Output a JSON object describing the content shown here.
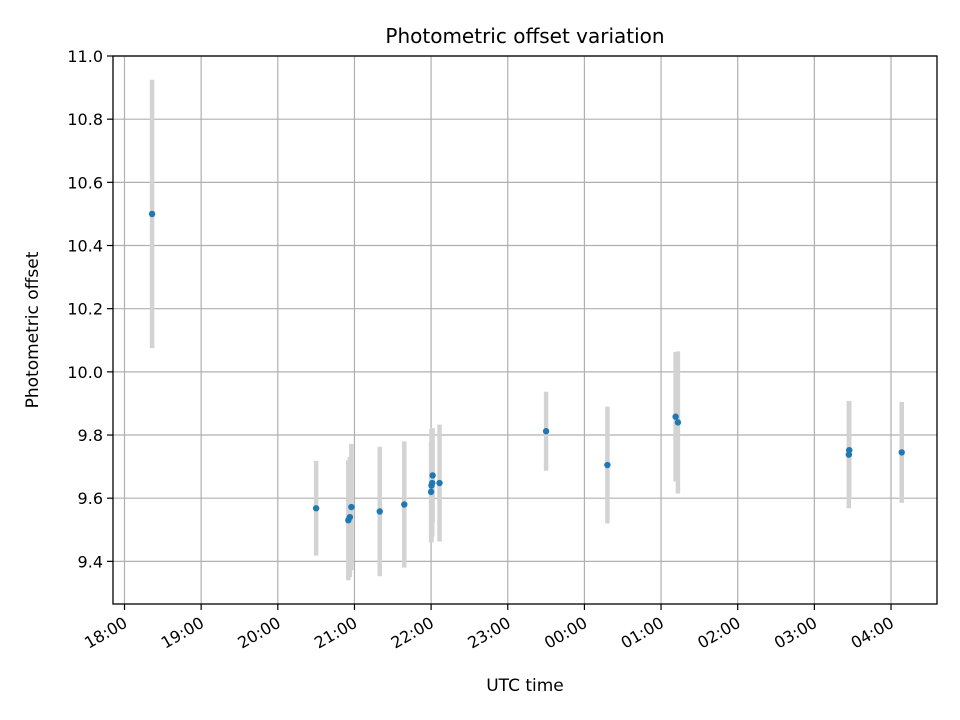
{
  "chart_data": {
    "type": "scatter",
    "title": "Photometric offset variation",
    "xlabel": "UTC time",
    "ylabel": "Photometric offset",
    "x_unit": "hours since 18:00 UTC",
    "xlim": [
      -0.15,
      10.6
    ],
    "ylim": [
      9.265,
      11.0
    ],
    "grid": true,
    "legend": "none",
    "marker_color": "#1f77b4",
    "errorbar_color": "#d3d3d3",
    "x_ticks": [
      {
        "label": "18:00",
        "x": 0
      },
      {
        "label": "19:00",
        "x": 1
      },
      {
        "label": "20:00",
        "x": 2
      },
      {
        "label": "21:00",
        "x": 3
      },
      {
        "label": "22:00",
        "x": 4
      },
      {
        "label": "23:00",
        "x": 5
      },
      {
        "label": "00:00",
        "x": 6
      },
      {
        "label": "01:00",
        "x": 7
      },
      {
        "label": "02:00",
        "x": 8
      },
      {
        "label": "03:00",
        "x": 9
      },
      {
        "label": "04:00",
        "x": 10
      }
    ],
    "y_ticks": [
      {
        "label": "9.4",
        "y": 9.4
      },
      {
        "label": "9.6",
        "y": 9.6
      },
      {
        "label": "9.8",
        "y": 9.8
      },
      {
        "label": "10.0",
        "y": 10.0
      },
      {
        "label": "10.2",
        "y": 10.2
      },
      {
        "label": "10.4",
        "y": 10.4
      },
      {
        "label": "10.6",
        "y": 10.6
      },
      {
        "label": "10.8",
        "y": 10.8
      },
      {
        "label": "11.0",
        "y": 11.0
      }
    ],
    "points": [
      {
        "time": "18:22",
        "x": 0.36,
        "y": 10.5,
        "err": 0.425
      },
      {
        "time": "20:30",
        "x": 2.5,
        "y": 9.568,
        "err": 0.15
      },
      {
        "time": "20:55",
        "x": 2.92,
        "y": 9.53,
        "err": 0.19
      },
      {
        "time": "20:56",
        "x": 2.94,
        "y": 9.54,
        "err": 0.19
      },
      {
        "time": "20:57",
        "x": 2.96,
        "y": 9.572,
        "err": 0.2
      },
      {
        "time": "21:20",
        "x": 3.33,
        "y": 9.558,
        "err": 0.205
      },
      {
        "time": "21:39",
        "x": 3.65,
        "y": 9.58,
        "err": 0.2
      },
      {
        "time": "22:00",
        "x": 4.0,
        "y": 9.62,
        "err": 0.16
      },
      {
        "time": "22:00",
        "x": 4.005,
        "y": 9.64,
        "err": 0.18
      },
      {
        "time": "22:01",
        "x": 4.015,
        "y": 9.648,
        "err": 0.17
      },
      {
        "time": "22:01",
        "x": 4.02,
        "y": 9.672,
        "err": 0.15
      },
      {
        "time": "22:07",
        "x": 4.11,
        "y": 9.648,
        "err": 0.185
      },
      {
        "time": "23:30",
        "x": 5.5,
        "y": 9.812,
        "err": 0.125
      },
      {
        "time": "00:18",
        "x": 6.3,
        "y": 9.705,
        "err": 0.185
      },
      {
        "time": "01:11",
        "x": 7.19,
        "y": 9.858,
        "err": 0.205
      },
      {
        "time": "01:13",
        "x": 7.22,
        "y": 9.84,
        "err": 0.225
      },
      {
        "time": "03:27",
        "x": 9.45,
        "y": 9.738,
        "err": 0.17
      },
      {
        "time": "03:27",
        "x": 9.455,
        "y": 9.752,
        "err": 0.155
      },
      {
        "time": "04:08",
        "x": 10.14,
        "y": 9.745,
        "err": 0.16
      }
    ]
  }
}
